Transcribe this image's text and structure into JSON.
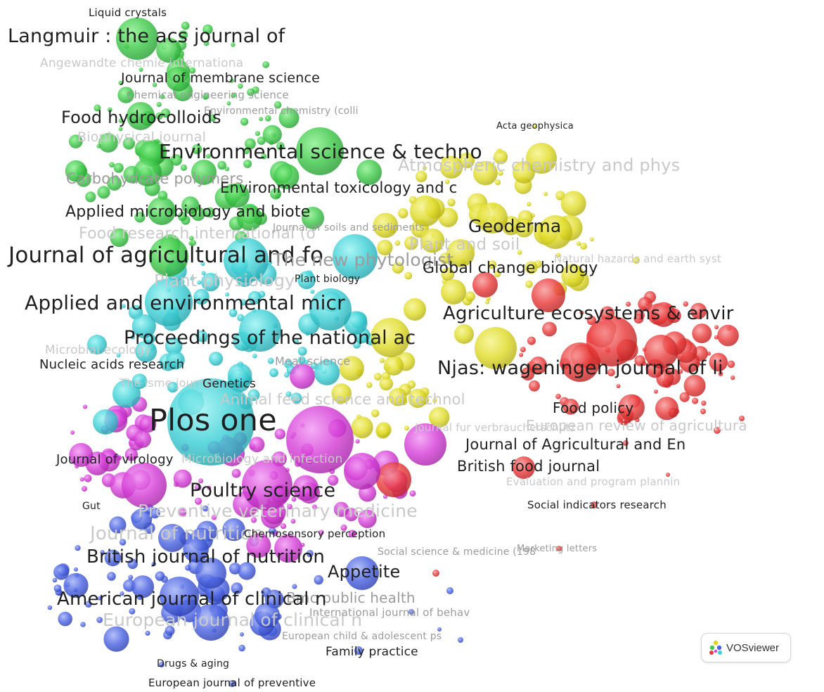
{
  "colors": {
    "green": "#3fc94a",
    "cyan": "#3ed0d6",
    "yellow": "#e0dc2a",
    "red": "#ea3b3b",
    "magenta": "#d63fd8",
    "blue": "#4a63e2"
  },
  "badge": {
    "label": "VOSviewer",
    "icon": "vosviewer-logo-icon"
  },
  "labels": [
    {
      "id": "l1",
      "text": "Liquid crystals",
      "cluster": "green"
    },
    {
      "id": "l2",
      "text": "Langmuir : the acs journal of",
      "cluster": "green"
    },
    {
      "id": "l3",
      "text": "Angewandte chemie internationa",
      "cluster": "green"
    },
    {
      "id": "l4",
      "text": "Journal of membrane science",
      "cluster": "green"
    },
    {
      "id": "l5",
      "text": "Chemical engineering science",
      "cluster": "green"
    },
    {
      "id": "l6",
      "text": "Environmental chemistry (colli",
      "cluster": "green"
    },
    {
      "id": "l7",
      "text": "Food hydrocolloids",
      "cluster": "green"
    },
    {
      "id": "l8",
      "text": "Biophysical journal",
      "cluster": "green"
    },
    {
      "id": "l9",
      "text": "Environmental science & techno",
      "cluster": "green"
    },
    {
      "id": "l10",
      "text": "Carbohydrate polymers",
      "cluster": "green"
    },
    {
      "id": "l11",
      "text": "Environmental toxicology and c",
      "cluster": "green"
    },
    {
      "id": "l12",
      "text": "Applied microbiology and biote",
      "cluster": "green"
    },
    {
      "id": "l13",
      "text": "Food research international (o",
      "cluster": "green"
    },
    {
      "id": "l14",
      "text": "Journal of soils and sediments",
      "cluster": "green"
    },
    {
      "id": "l15",
      "text": "Journal of agricultural and fo",
      "cluster": "green"
    },
    {
      "id": "l16",
      "text": "The new phytologist",
      "cluster": "cyan"
    },
    {
      "id": "l17",
      "text": "Plant physiology",
      "cluster": "cyan"
    },
    {
      "id": "l18",
      "text": "Plant biology",
      "cluster": "cyan"
    },
    {
      "id": "l19",
      "text": "Applied and environmental micr",
      "cluster": "green"
    },
    {
      "id": "l20",
      "text": "Proceedings of the national ac",
      "cluster": "cyan"
    },
    {
      "id": "l21",
      "text": "Microbial ecology",
      "cluster": "cyan"
    },
    {
      "id": "l22",
      "text": "Nucleic acids research",
      "cluster": "cyan"
    },
    {
      "id": "l23",
      "text": "Meat science",
      "cluster": "yellow"
    },
    {
      "id": "l24",
      "text": "The isme journal",
      "cluster": "cyan"
    },
    {
      "id": "l25",
      "text": "Genetics",
      "cluster": "cyan"
    },
    {
      "id": "l26",
      "text": "Animal feed science and technol",
      "cluster": "yellow"
    },
    {
      "id": "l27",
      "text": "Plos one",
      "cluster": "cyan"
    },
    {
      "id": "l28",
      "text": "Journal of virology",
      "cluster": "blue"
    },
    {
      "id": "l29",
      "text": "Microbiology and infection",
      "cluster": "magenta"
    },
    {
      "id": "l30",
      "text": "Poultry science",
      "cluster": "magenta"
    },
    {
      "id": "l31",
      "text": "Gut",
      "cluster": "blue"
    },
    {
      "id": "l32",
      "text": "Preventive veterinary medicine",
      "cluster": "magenta"
    },
    {
      "id": "l33",
      "text": "Journal of nutrition",
      "cluster": "blue"
    },
    {
      "id": "l34",
      "text": "Chemosensory perception",
      "cluster": "magenta"
    },
    {
      "id": "l35",
      "text": "British journal of nutrition",
      "cluster": "blue"
    },
    {
      "id": "l36",
      "text": "Appetite",
      "cluster": "blue"
    },
    {
      "id": "l37",
      "text": "Bmc public health",
      "cluster": "blue"
    },
    {
      "id": "l38",
      "text": "American journal of clinical n",
      "cluster": "blue"
    },
    {
      "id": "l39",
      "text": "European journal of clinical n",
      "cluster": "blue"
    },
    {
      "id": "l40",
      "text": "International journal of behav",
      "cluster": "blue"
    },
    {
      "id": "l41",
      "text": "European child & adolescent ps",
      "cluster": "blue"
    },
    {
      "id": "l42",
      "text": "Family practice",
      "cluster": "blue"
    },
    {
      "id": "l43",
      "text": "Drugs & aging",
      "cluster": "blue"
    },
    {
      "id": "l44",
      "text": "European journal of preventive",
      "cluster": "blue"
    },
    {
      "id": "l45",
      "text": "Acta geophysica",
      "cluster": "yellow"
    },
    {
      "id": "l46",
      "text": "Atmospheric chemistry and phys",
      "cluster": "yellow"
    },
    {
      "id": "l47",
      "text": "Geoderma",
      "cluster": "yellow"
    },
    {
      "id": "l48",
      "text": "Plant and soil",
      "cluster": "yellow"
    },
    {
      "id": "l49",
      "text": "Natural hazards and earth syst",
      "cluster": "yellow"
    },
    {
      "id": "l50",
      "text": "Global change biology",
      "cluster": "yellow"
    },
    {
      "id": "l51",
      "text": "Agriculture ecosystems & envir",
      "cluster": "red"
    },
    {
      "id": "l52",
      "text": "Njas: wageningen journal of li",
      "cluster": "red"
    },
    {
      "id": "l53",
      "text": "Food policy",
      "cluster": "red"
    },
    {
      "id": "l54",
      "text": "European review of agricultura",
      "cluster": "red"
    },
    {
      "id": "l55",
      "text": "Journal fur verbraucherschutz",
      "cluster": "red"
    },
    {
      "id": "l56",
      "text": "Journal of Agricultural and En",
      "cluster": "red"
    },
    {
      "id": "l57",
      "text": "British food journal",
      "cluster": "red"
    },
    {
      "id": "l58",
      "text": "Evaluation and program plannin",
      "cluster": "red"
    },
    {
      "id": "l59",
      "text": "Social indicators research",
      "cluster": "red"
    },
    {
      "id": "l60",
      "text": "Social science & medicine (198",
      "cluster": "blue"
    },
    {
      "id": "l61",
      "text": "Marketing letters",
      "cluster": "red"
    }
  ]
}
